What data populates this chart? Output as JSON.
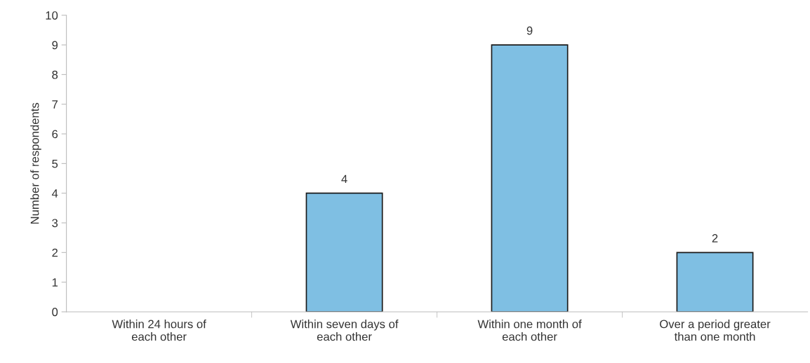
{
  "chart_data": {
    "type": "bar",
    "ylabel": "Number of respondents",
    "categories": [
      "Within 24 hours of\neach other",
      "Within seven days of\neach other",
      "Within one month of\neach other",
      "Over a period greater\nthan one month"
    ],
    "values": [
      0,
      4,
      9,
      2
    ],
    "value_labels": [
      null,
      "4",
      "9",
      "2"
    ],
    "color": "#7fbfe3",
    "ylim": [
      0,
      10
    ],
    "yticks": [
      0,
      1,
      2,
      3,
      4,
      5,
      6,
      7,
      8,
      9,
      10
    ],
    "grid": false
  }
}
